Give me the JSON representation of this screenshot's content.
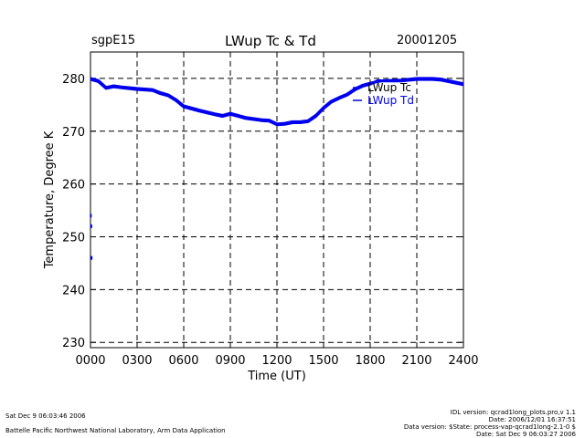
{
  "header": {
    "site": "sgpE15",
    "title": "LWup Tc & Td",
    "date": "20001205"
  },
  "footer": {
    "left_line1": "Sat Dec  9 06:03:46 2006",
    "left_line2": "Battelle Pacific Northwest National Laboratory, Arm Data Application",
    "right_line1": "IDL version: qcrad1long_plots.pro,v 1.1",
    "right_line2": "Date: 2006/12/01 16:37:51",
    "right_line3": "Data version: $State: process-vap-qcrad1long-2.1-0 $",
    "right_line4": "Date: Sat Dec  9 06:03:27 2006"
  },
  "colors": {
    "series": "#0000ee",
    "axis": "#000000",
    "grid": "#000000"
  },
  "chart_data": {
    "type": "line",
    "title": "LWup Tc & Td",
    "xlabel": "Time (UT)",
    "ylabel": "Temperature, Degree K",
    "xlim": [
      0,
      2400
    ],
    "ylim": [
      229,
      285
    ],
    "xticks": [
      0,
      300,
      600,
      900,
      1200,
      1500,
      1800,
      2100,
      2400
    ],
    "xtick_labels": [
      "0000",
      "0300",
      "0600",
      "0900",
      "1200",
      "1500",
      "1800",
      "2100",
      "2400"
    ],
    "yticks": [
      230,
      240,
      250,
      260,
      270,
      280
    ],
    "ytick_labels": [
      "230",
      "240",
      "250",
      "260",
      "270",
      "280"
    ],
    "grid": true,
    "legend": "top-right",
    "series": [
      {
        "name": "LWup Tc",
        "x": [
          0,
          50,
          100,
          150,
          200,
          300,
          400,
          450,
          500,
          550,
          600,
          700,
          800,
          850,
          900,
          950,
          1000,
          1100,
          1150,
          1200,
          1250,
          1300,
          1350,
          1400,
          1450,
          1500,
          1550,
          1600,
          1650,
          1700,
          1750,
          1800,
          1850,
          1900,
          2000,
          2100,
          2200,
          2250,
          2300,
          2400
        ],
        "y": [
          280,
          279.6,
          278.3,
          278.6,
          278.4,
          278.1,
          277.9,
          277.3,
          276.9,
          276,
          274.8,
          274,
          273.3,
          273,
          273.4,
          273,
          272.6,
          272.2,
          272.1,
          271.4,
          271.5,
          271.8,
          271.8,
          272,
          273,
          274.5,
          275.7,
          276.4,
          277,
          278,
          278.7,
          279.1,
          279.4,
          279.6,
          279.7,
          280,
          280,
          279.9,
          279.6,
          279
        ]
      },
      {
        "name": "LWup Td",
        "x": [
          0,
          50,
          100,
          150,
          200,
          300,
          400,
          450,
          500,
          550,
          600,
          700,
          800,
          850,
          900,
          950,
          1000,
          1100,
          1150,
          1200,
          1250,
          1300,
          1350,
          1400,
          1450,
          1500,
          1550,
          1600,
          1650,
          1700,
          1750,
          1800,
          1850,
          1900,
          2000,
          2100,
          2200,
          2250,
          2300,
          2400
        ],
        "y": [
          279.8,
          279.4,
          278.1,
          278.4,
          278.2,
          277.9,
          277.7,
          277.1,
          276.7,
          275.8,
          274.6,
          273.8,
          273.1,
          272.8,
          273.2,
          272.8,
          272.4,
          272,
          271.9,
          271.2,
          271.3,
          271.6,
          271.6,
          271.8,
          272.8,
          274.3,
          275.5,
          276.2,
          276.8,
          277.8,
          278.5,
          278.9,
          279.6,
          279.5,
          279.5,
          279.8,
          279.8,
          279.7,
          279.4,
          278.8
        ]
      },
      {
        "name": "",
        "x": [
          2,
          5,
          7
        ],
        "y": [
          254,
          252,
          246
        ],
        "style": "points"
      }
    ]
  }
}
